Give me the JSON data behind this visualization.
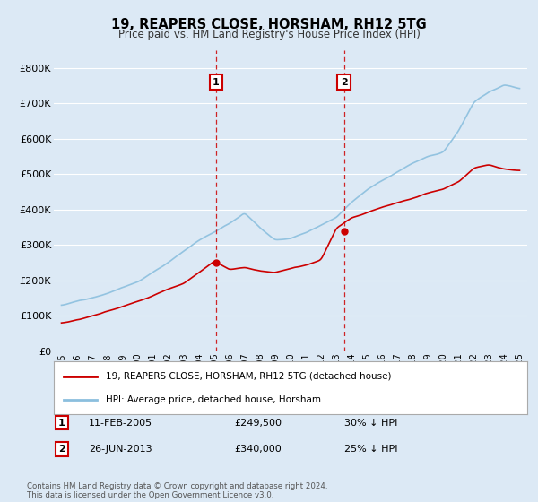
{
  "title": "19, REAPERS CLOSE, HORSHAM, RH12 5TG",
  "subtitle": "Price paid vs. HM Land Registry's House Price Index (HPI)",
  "bg_color": "#dce9f5",
  "plot_bg_color": "#dce9f5",
  "ylim": [
    0,
    850000
  ],
  "yticks": [
    0,
    100000,
    200000,
    300000,
    400000,
    500000,
    600000,
    700000,
    800000
  ],
  "ytick_labels": [
    "£0",
    "£100K",
    "£200K",
    "£300K",
    "£400K",
    "£500K",
    "£600K",
    "£700K",
    "£800K"
  ],
  "hpi_color": "#8bbfde",
  "price_color": "#cc0000",
  "marker1_date": 2005.12,
  "marker1_price": 249500,
  "marker2_date": 2013.5,
  "marker2_price": 340000,
  "legend_line1": "19, REAPERS CLOSE, HORSHAM, RH12 5TG (detached house)",
  "legend_line2": "HPI: Average price, detached house, Horsham",
  "footnote": "Contains HM Land Registry data © Crown copyright and database right 2024.\nThis data is licensed under the Open Government Licence v3.0.",
  "table": [
    {
      "num": "1",
      "date": "11-FEB-2005",
      "price": "£249,500",
      "hpi": "30% ↓ HPI"
    },
    {
      "num": "2",
      "date": "26-JUN-2013",
      "price": "£340,000",
      "hpi": "25% ↓ HPI"
    }
  ]
}
